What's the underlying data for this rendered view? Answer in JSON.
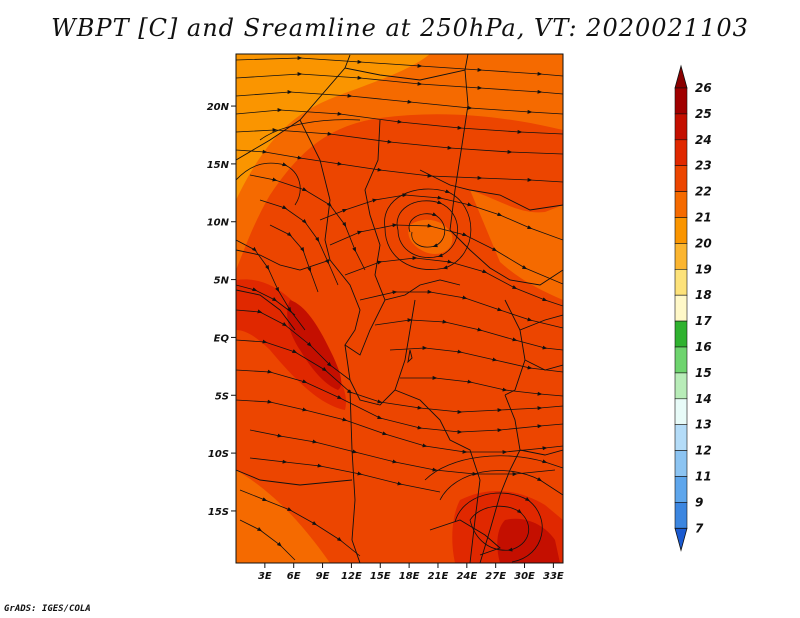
{
  "title": "WBPT [C] and Sreamline at 250hPa, VT: 2020021103",
  "credit": "GrADS: IGES/COLA",
  "map": {
    "lat_labels": [
      "20N",
      "15N",
      "10N",
      "5N",
      "EQ",
      "5S",
      "10S",
      "15S"
    ],
    "lat_values": [
      20,
      15,
      10,
      5,
      0,
      -5,
      -10,
      -15
    ],
    "lon_labels": [
      "3E",
      "6E",
      "9E",
      "12E",
      "15E",
      "18E",
      "21E",
      "24E",
      "27E",
      "30E",
      "33E"
    ],
    "lon_values": [
      3,
      6,
      9,
      12,
      15,
      18,
      21,
      24,
      27,
      30,
      33
    ],
    "lat_range": [
      -19.5,
      24.5
    ],
    "lon_range": [
      0,
      34
    ]
  },
  "colorbar": {
    "levels": [
      "26",
      "25",
      "24",
      "23",
      "22",
      "21",
      "20",
      "19",
      "18",
      "17",
      "16",
      "15",
      "14",
      "13",
      "12",
      "11",
      "9",
      "7"
    ],
    "colors": [
      "#a00000",
      "#c40f00",
      "#e02800",
      "#ec4500",
      "#f56a00",
      "#fa9500",
      "#fbb530",
      "#fde27a",
      "#fff8c8",
      "#2fb22f",
      "#6ed46e",
      "#b8ecb8",
      "#e8fbf8",
      "#b4dcf8",
      "#8cc4f2",
      "#5ea6ec",
      "#3c86e0",
      "#1e64d4"
    ],
    "top_arrow_color": "#8a0000",
    "bottom_arrow_color": "#1a5ad0"
  },
  "field_colors": {
    "base": "#ec4500",
    "warm": "#f56a00",
    "warmer": "#fa9500",
    "hot": "#e02800",
    "hotter": "#c40f00"
  }
}
